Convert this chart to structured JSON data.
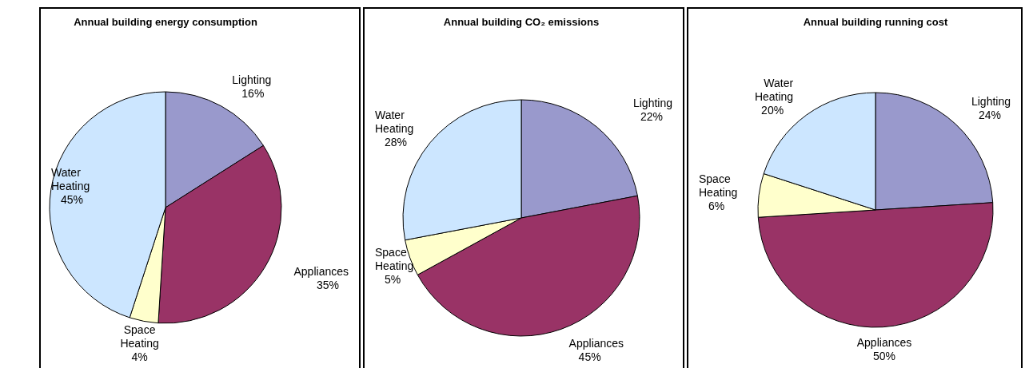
{
  "chart_data": [
    {
      "type": "pie",
      "title": "Annual building energy consumption",
      "categories": [
        "Lighting",
        "Appliances",
        "Space Heating",
        "Water Heating"
      ],
      "values": [
        16,
        35,
        4,
        45
      ],
      "value_labels": [
        "16%",
        "35%",
        "4%",
        "45%"
      ],
      "colors": [
        "#9999cc",
        "#993366",
        "#ffffcc",
        "#cce6ff"
      ]
    },
    {
      "type": "pie",
      "title": "Annual building CO₂ emissions",
      "categories": [
        "Lighting",
        "Appliances",
        "Space Heating",
        "Water Heating"
      ],
      "values": [
        22,
        45,
        5,
        28
      ],
      "value_labels": [
        "22%",
        "45%",
        "5%",
        "28%"
      ],
      "colors": [
        "#9999cc",
        "#993366",
        "#ffffcc",
        "#cce6ff"
      ]
    },
    {
      "type": "pie",
      "title": "Annual building running cost",
      "categories": [
        "Lighting",
        "Appliances",
        "Space Heating",
        "Water Heating"
      ],
      "values": [
        24,
        50,
        6,
        20
      ],
      "value_labels": [
        "24%",
        "50%",
        "6%",
        "20%"
      ],
      "colors": [
        "#9999cc",
        "#993366",
        "#ffffcc",
        "#cce6ff"
      ]
    }
  ]
}
